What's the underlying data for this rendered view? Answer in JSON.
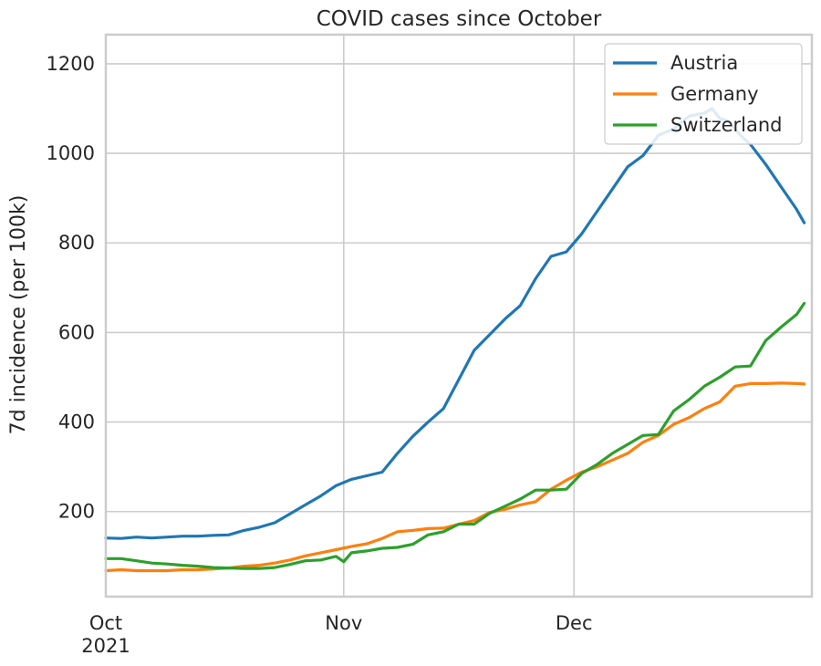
{
  "chart_data": {
    "type": "line",
    "title": "COVID cases since October",
    "xlabel": "",
    "ylabel": "7d incidence (per 100k)",
    "x_start": "2021-10-01",
    "x_end": "2021-12-31",
    "xlim": [
      "2021-10-01",
      "2021-12-31"
    ],
    "ylim": [
      10,
      1265
    ],
    "x_ticks": [
      {
        "date": "2021-10-01",
        "label": "Oct",
        "sublabel": "2021"
      },
      {
        "date": "2021-11-01",
        "label": "Nov",
        "sublabel": ""
      },
      {
        "date": "2021-12-01",
        "label": "Dec",
        "sublabel": ""
      }
    ],
    "y_ticks": [
      200,
      400,
      600,
      800,
      1000,
      1200
    ],
    "grid": true,
    "legend_position": "top-right",
    "series": [
      {
        "name": "Austria",
        "color": "#1f77b4",
        "points": [
          [
            "2021-10-01",
            141
          ],
          [
            "2021-10-03",
            140
          ],
          [
            "2021-10-05",
            143
          ],
          [
            "2021-10-07",
            141
          ],
          [
            "2021-10-09",
            143
          ],
          [
            "2021-10-11",
            145
          ],
          [
            "2021-10-13",
            145
          ],
          [
            "2021-10-15",
            147
          ],
          [
            "2021-10-17",
            148
          ],
          [
            "2021-10-19",
            158
          ],
          [
            "2021-10-21",
            165
          ],
          [
            "2021-10-23",
            175
          ],
          [
            "2021-10-25",
            195
          ],
          [
            "2021-10-27",
            215
          ],
          [
            "2021-10-29",
            235
          ],
          [
            "2021-10-31",
            258
          ],
          [
            "2021-11-02",
            272
          ],
          [
            "2021-11-04",
            280
          ],
          [
            "2021-11-06",
            288
          ],
          [
            "2021-11-08",
            330
          ],
          [
            "2021-11-10",
            368
          ],
          [
            "2021-11-12",
            400
          ],
          [
            "2021-11-14",
            430
          ],
          [
            "2021-11-16",
            495
          ],
          [
            "2021-11-18",
            560
          ],
          [
            "2021-11-20",
            595
          ],
          [
            "2021-11-22",
            630
          ],
          [
            "2021-11-24",
            660
          ],
          [
            "2021-11-26",
            720
          ],
          [
            "2021-11-28",
            770
          ],
          [
            "2021-11-30",
            780
          ],
          [
            "2021-12-02",
            820
          ],
          [
            "2021-12-04",
            870
          ],
          [
            "2021-12-06",
            920
          ],
          [
            "2021-12-08",
            970
          ],
          [
            "2021-12-10",
            995
          ],
          [
            "2021-12-12",
            1040
          ],
          [
            "2021-12-14",
            1055
          ],
          [
            "2021-12-16",
            1083
          ],
          [
            "2021-12-18",
            1090
          ],
          [
            "2021-12-19",
            1100
          ],
          [
            "2021-12-20",
            1078
          ],
          [
            "2021-12-21",
            1073
          ],
          [
            "2021-12-23",
            1035
          ],
          [
            "2021-12-24",
            1020
          ],
          [
            "2021-12-26",
            975
          ],
          [
            "2021-12-28",
            925
          ],
          [
            "2021-12-30",
            875
          ],
          [
            "2021-12-31",
            845
          ]
        ]
      },
      {
        "name": "Germany",
        "color": "#ff7f0e",
        "points": [
          [
            "2021-10-01",
            68
          ],
          [
            "2021-10-03",
            70
          ],
          [
            "2021-10-05",
            68
          ],
          [
            "2021-10-07",
            68
          ],
          [
            "2021-10-09",
            68
          ],
          [
            "2021-10-11",
            70
          ],
          [
            "2021-10-13",
            70
          ],
          [
            "2021-10-15",
            72
          ],
          [
            "2021-10-17",
            74
          ],
          [
            "2021-10-19",
            78
          ],
          [
            "2021-10-21",
            80
          ],
          [
            "2021-10-23",
            85
          ],
          [
            "2021-10-25",
            92
          ],
          [
            "2021-10-27",
            101
          ],
          [
            "2021-10-29",
            108
          ],
          [
            "2021-10-31",
            115
          ],
          [
            "2021-11-02",
            122
          ],
          [
            "2021-11-04",
            128
          ],
          [
            "2021-11-06",
            140
          ],
          [
            "2021-11-08",
            155
          ],
          [
            "2021-11-10",
            158
          ],
          [
            "2021-11-12",
            162
          ],
          [
            "2021-11-14",
            163
          ],
          [
            "2021-11-16",
            172
          ],
          [
            "2021-11-18",
            180
          ],
          [
            "2021-11-20",
            198
          ],
          [
            "2021-11-22",
            205
          ],
          [
            "2021-11-24",
            215
          ],
          [
            "2021-11-26",
            222
          ],
          [
            "2021-11-28",
            250
          ],
          [
            "2021-11-30",
            270
          ],
          [
            "2021-12-02",
            288
          ],
          [
            "2021-12-04",
            300
          ],
          [
            "2021-12-06",
            315
          ],
          [
            "2021-12-08",
            330
          ],
          [
            "2021-12-10",
            355
          ],
          [
            "2021-12-12",
            370
          ],
          [
            "2021-12-14",
            395
          ],
          [
            "2021-12-16",
            410
          ],
          [
            "2021-12-18",
            430
          ],
          [
            "2021-12-20",
            445
          ],
          [
            "2021-12-22",
            480
          ],
          [
            "2021-12-24",
            486
          ],
          [
            "2021-12-26",
            486
          ],
          [
            "2021-12-28",
            487
          ],
          [
            "2021-12-30",
            486
          ],
          [
            "2021-12-31",
            485
          ]
        ]
      },
      {
        "name": "Switzerland",
        "color": "#2ca02c",
        "points": [
          [
            "2021-10-01",
            95
          ],
          [
            "2021-10-03",
            95
          ],
          [
            "2021-10-05",
            90
          ],
          [
            "2021-10-07",
            85
          ],
          [
            "2021-10-09",
            83
          ],
          [
            "2021-10-11",
            80
          ],
          [
            "2021-10-13",
            78
          ],
          [
            "2021-10-15",
            75
          ],
          [
            "2021-10-17",
            74
          ],
          [
            "2021-10-19",
            73
          ],
          [
            "2021-10-21",
            73
          ],
          [
            "2021-10-23",
            75
          ],
          [
            "2021-10-25",
            82
          ],
          [
            "2021-10-27",
            90
          ],
          [
            "2021-10-29",
            92
          ],
          [
            "2021-10-31",
            100
          ],
          [
            "2021-11-01",
            88
          ],
          [
            "2021-11-02",
            108
          ],
          [
            "2021-11-04",
            112
          ],
          [
            "2021-11-06",
            118
          ],
          [
            "2021-11-08",
            120
          ],
          [
            "2021-11-10",
            127
          ],
          [
            "2021-11-12",
            148
          ],
          [
            "2021-11-14",
            155
          ],
          [
            "2021-11-16",
            172
          ],
          [
            "2021-11-18",
            172
          ],
          [
            "2021-11-20",
            196
          ],
          [
            "2021-11-22",
            212
          ],
          [
            "2021-11-24",
            228
          ],
          [
            "2021-11-26",
            248
          ],
          [
            "2021-11-28",
            248
          ],
          [
            "2021-11-30",
            250
          ],
          [
            "2021-12-02",
            285
          ],
          [
            "2021-12-04",
            305
          ],
          [
            "2021-12-06",
            330
          ],
          [
            "2021-12-08",
            350
          ],
          [
            "2021-12-10",
            370
          ],
          [
            "2021-12-12",
            372
          ],
          [
            "2021-12-14",
            425
          ],
          [
            "2021-12-16",
            450
          ],
          [
            "2021-12-18",
            480
          ],
          [
            "2021-12-20",
            500
          ],
          [
            "2021-12-22",
            523
          ],
          [
            "2021-12-24",
            525
          ],
          [
            "2021-12-26",
            582
          ],
          [
            "2021-12-28",
            612
          ],
          [
            "2021-12-30",
            640
          ],
          [
            "2021-12-31",
            665
          ]
        ]
      }
    ]
  }
}
